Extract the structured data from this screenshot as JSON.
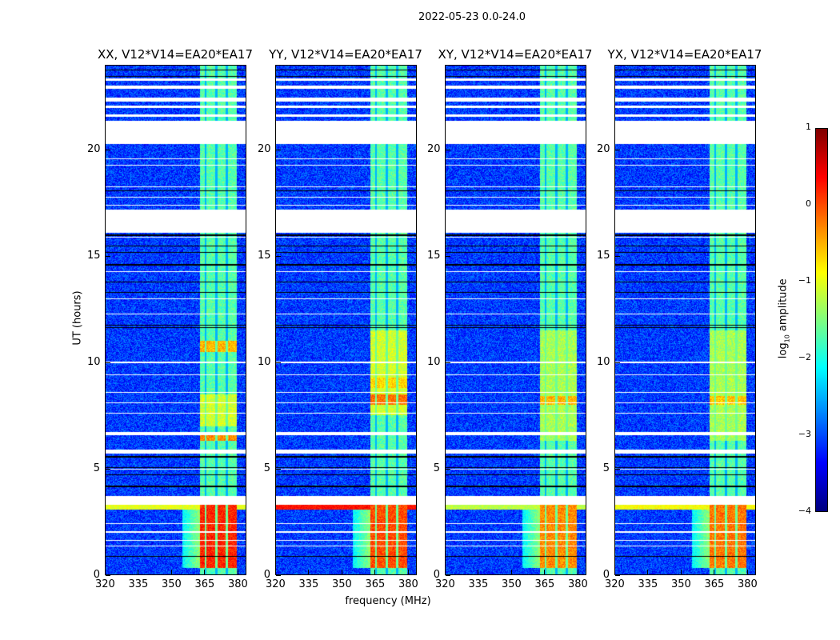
{
  "chart_data": {
    "type": "heatmap",
    "title": "2022-05-23 0.0-24.0",
    "xlabel": "frequency (MHz)",
    "ylabel": "UT (hours)",
    "xlim": [
      320,
      384
    ],
    "ylim": [
      0,
      24
    ],
    "xticks": [
      "320",
      "335",
      "350",
      "365",
      "380"
    ],
    "xtick_values": [
      320,
      335,
      350,
      365,
      380
    ],
    "yticks": [
      "0",
      "5",
      "10",
      "15",
      "20"
    ],
    "ytick_values": [
      0,
      5,
      10,
      15,
      20
    ],
    "colorbar": {
      "label_main": "log",
      "label_sub": "10",
      "label_rest": " amplitude",
      "range": [
        -4,
        1
      ],
      "ticks": [
        "1",
        "0",
        "−1",
        "−2",
        "−3",
        "−4"
      ],
      "tick_values": [
        1,
        0,
        -1,
        -2,
        -3,
        -4
      ],
      "colormap": "jet"
    },
    "active_band_mhz": [
      363,
      380
    ],
    "dark_channels_mhz": [
      365.8,
      370.6,
      375.4
    ],
    "flagged_hours": [
      [
        3.3,
        3.7
      ],
      [
        5.7,
        5.9
      ],
      [
        6.55,
        6.7
      ],
      [
        16.1,
        17.2
      ],
      [
        20.3,
        21.4
      ],
      [
        21.6,
        21.7
      ],
      [
        22.0,
        22.1
      ],
      [
        22.3,
        22.5
      ],
      [
        22.9,
        23.05
      ],
      [
        23.3,
        23.4
      ]
    ],
    "black_lines_hours": [
      0.85,
      4.15,
      4.7,
      5.05,
      5.55,
      11.65,
      11.75,
      13.3,
      13.8,
      14.6,
      15.2,
      15.5,
      16.0,
      18.1,
      23.5,
      23.8
    ],
    "white_lines_hours": [
      1.35,
      1.6,
      2.0,
      2.4,
      4.95,
      7.6,
      8.1,
      8.6,
      9.4,
      10.0,
      12.3,
      13.0,
      14.3,
      15.9,
      17.4,
      17.8,
      18.3,
      19.3,
      19.6,
      23.0
    ],
    "panels": [
      {
        "title": "XX, V12*V14=EA20*EA17",
        "bursts": [
          [
            0.3,
            3.3,
            0.2
          ],
          [
            6.3,
            6.7,
            -0.3
          ],
          [
            10.5,
            11.0,
            -0.5
          ],
          [
            7.0,
            8.5,
            -1.1
          ]
        ],
        "streak": -1.0
      },
      {
        "title": "YY, V12*V14=EA20*EA17",
        "bursts": [
          [
            0.3,
            3.3,
            0.0
          ],
          [
            8.0,
            8.5,
            -0.2
          ],
          [
            8.8,
            9.3,
            -0.7
          ],
          [
            7.5,
            11.5,
            -1.1
          ]
        ],
        "streak": 0.3
      },
      {
        "title": "XY, V12*V14=EA20*EA17",
        "bursts": [
          [
            0.3,
            3.3,
            -0.3
          ],
          [
            8.0,
            8.4,
            -0.5
          ],
          [
            6.3,
            11.5,
            -1.3
          ]
        ],
        "streak": -1.2
      },
      {
        "title": "YX, V12*V14=EA20*EA17",
        "bursts": [
          [
            0.3,
            3.3,
            -0.2
          ],
          [
            8.0,
            8.4,
            -0.6
          ],
          [
            6.3,
            11.5,
            -1.3
          ]
        ],
        "streak": -0.9
      }
    ]
  }
}
